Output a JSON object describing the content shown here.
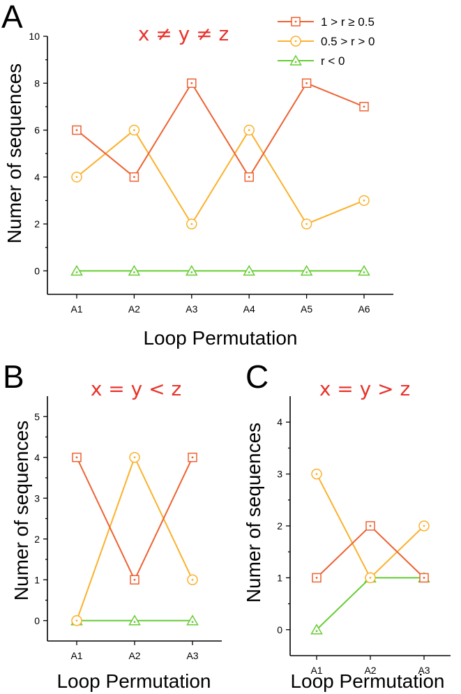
{
  "colors": {
    "s1": "#ee6131",
    "s2": "#fbb12b",
    "s3": "#66cc33",
    "condition": "#e8322a"
  },
  "legend": {
    "entries": [
      "1 > r ≥ 0.5",
      "0.5 > r > 0",
      "r < 0"
    ],
    "placement": "top-right"
  },
  "chart_data": [
    {
      "panel": "A",
      "type": "line",
      "title": "x ≠ y ≠ z",
      "xlabel": "Loop Permutation",
      "ylabel": "Numer of sequences",
      "categories": [
        "A1",
        "A2",
        "A3",
        "A4",
        "A5",
        "A6"
      ],
      "ylim": [
        -1,
        10
      ],
      "yticks": [
        0,
        2,
        4,
        6,
        8,
        10
      ],
      "series": [
        {
          "name": "1 > r ≥ 0.5",
          "marker": "square",
          "values": [
            6,
            4,
            8,
            4,
            8,
            7
          ]
        },
        {
          "name": "0.5 > r > 0",
          "marker": "circle",
          "values": [
            4,
            6,
            2,
            6,
            2,
            3
          ]
        },
        {
          "name": "r < 0",
          "marker": "triangle",
          "values": [
            0,
            0,
            0,
            0,
            0,
            0
          ]
        }
      ]
    },
    {
      "panel": "B",
      "type": "line",
      "title": "x = y < z",
      "xlabel": "Loop Permutation",
      "ylabel": "Numer of sequences",
      "categories": [
        "A1",
        "A2",
        "A3"
      ],
      "ylim": [
        -0.5,
        5.5
      ],
      "yticks": [
        0,
        1,
        2,
        3,
        4,
        5
      ],
      "series": [
        {
          "name": "1 > r ≥ 0.5",
          "marker": "square",
          "values": [
            4,
            1,
            4
          ]
        },
        {
          "name": "0.5 > r > 0",
          "marker": "circle",
          "values": [
            0,
            4,
            1
          ]
        },
        {
          "name": "r < 0",
          "marker": "triangle",
          "values": [
            0,
            0,
            0
          ]
        }
      ]
    },
    {
      "panel": "C",
      "type": "line",
      "title": "x = y > z",
      "xlabel": "Loop Permutation",
      "ylabel": "Numer of sequences",
      "categories": [
        "A1",
        "A2",
        "A3"
      ],
      "ylim": [
        -0.5,
        4.5
      ],
      "yticks": [
        0,
        1,
        2,
        3,
        4
      ],
      "series": [
        {
          "name": "1 > r ≥ 0.5",
          "marker": "square",
          "values": [
            1,
            2,
            1
          ]
        },
        {
          "name": "0.5 > r > 0",
          "marker": "circle",
          "values": [
            3,
            1,
            2
          ]
        },
        {
          "name": "r < 0",
          "marker": "triangle",
          "values": [
            0,
            1,
            1
          ]
        }
      ]
    }
  ]
}
